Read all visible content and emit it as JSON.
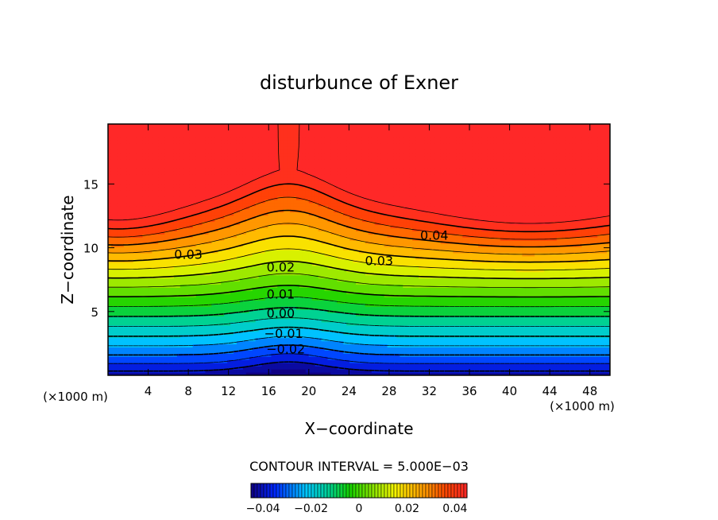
{
  "chart_data": {
    "type": "contour",
    "title": "disturbunce of Exner",
    "xlabel": "X−coordinate",
    "ylabel": "Z−coordinate",
    "x_unit_left": "(×1000 m)",
    "x_unit_right": "(×1000 m)",
    "xlim": [
      0,
      50
    ],
    "ylim": [
      0,
      19.7
    ],
    "x_ticks": [
      4,
      8,
      12,
      16,
      20,
      24,
      28,
      32,
      36,
      40,
      44,
      48
    ],
    "y_ticks": [
      5,
      10,
      15
    ],
    "contour_interval_text": "CONTOUR INTERVAL = 5.000E−03",
    "contour_interval": 0.005,
    "contour_labels": [
      {
        "text": "0.03",
        "x": 8,
        "z": 9.5
      },
      {
        "text": "0.03",
        "x": 27,
        "z": 9.0
      },
      {
        "text": "0.04",
        "x": 32.5,
        "z": 11.0
      },
      {
        "text": "0.02",
        "x": 17.2,
        "z": 8.5
      },
      {
        "text": "0.01",
        "x": 17.2,
        "z": 6.4
      },
      {
        "text": "0.00",
        "x": 17.2,
        "z": 4.9
      },
      {
        "text": "−0.01",
        "x": 17.5,
        "z": 3.3
      },
      {
        "text": "−0.02",
        "x": 17.7,
        "z": 2.1
      }
    ],
    "field_extrema": {
      "max_value": 0.045,
      "min_value": -0.045,
      "min_location": [
        18,
        0
      ],
      "max_locations": [
        [
          2,
          13
        ],
        [
          40,
          13.5
        ]
      ]
    },
    "colorbar": {
      "range": [
        -0.045,
        0.045
      ],
      "ticks": [
        -0.04,
        -0.02,
        0,
        0.02,
        0.04
      ],
      "tick_labels": [
        "−0.04",
        "−0.02",
        "0",
        "0.02",
        "0.04"
      ]
    }
  }
}
